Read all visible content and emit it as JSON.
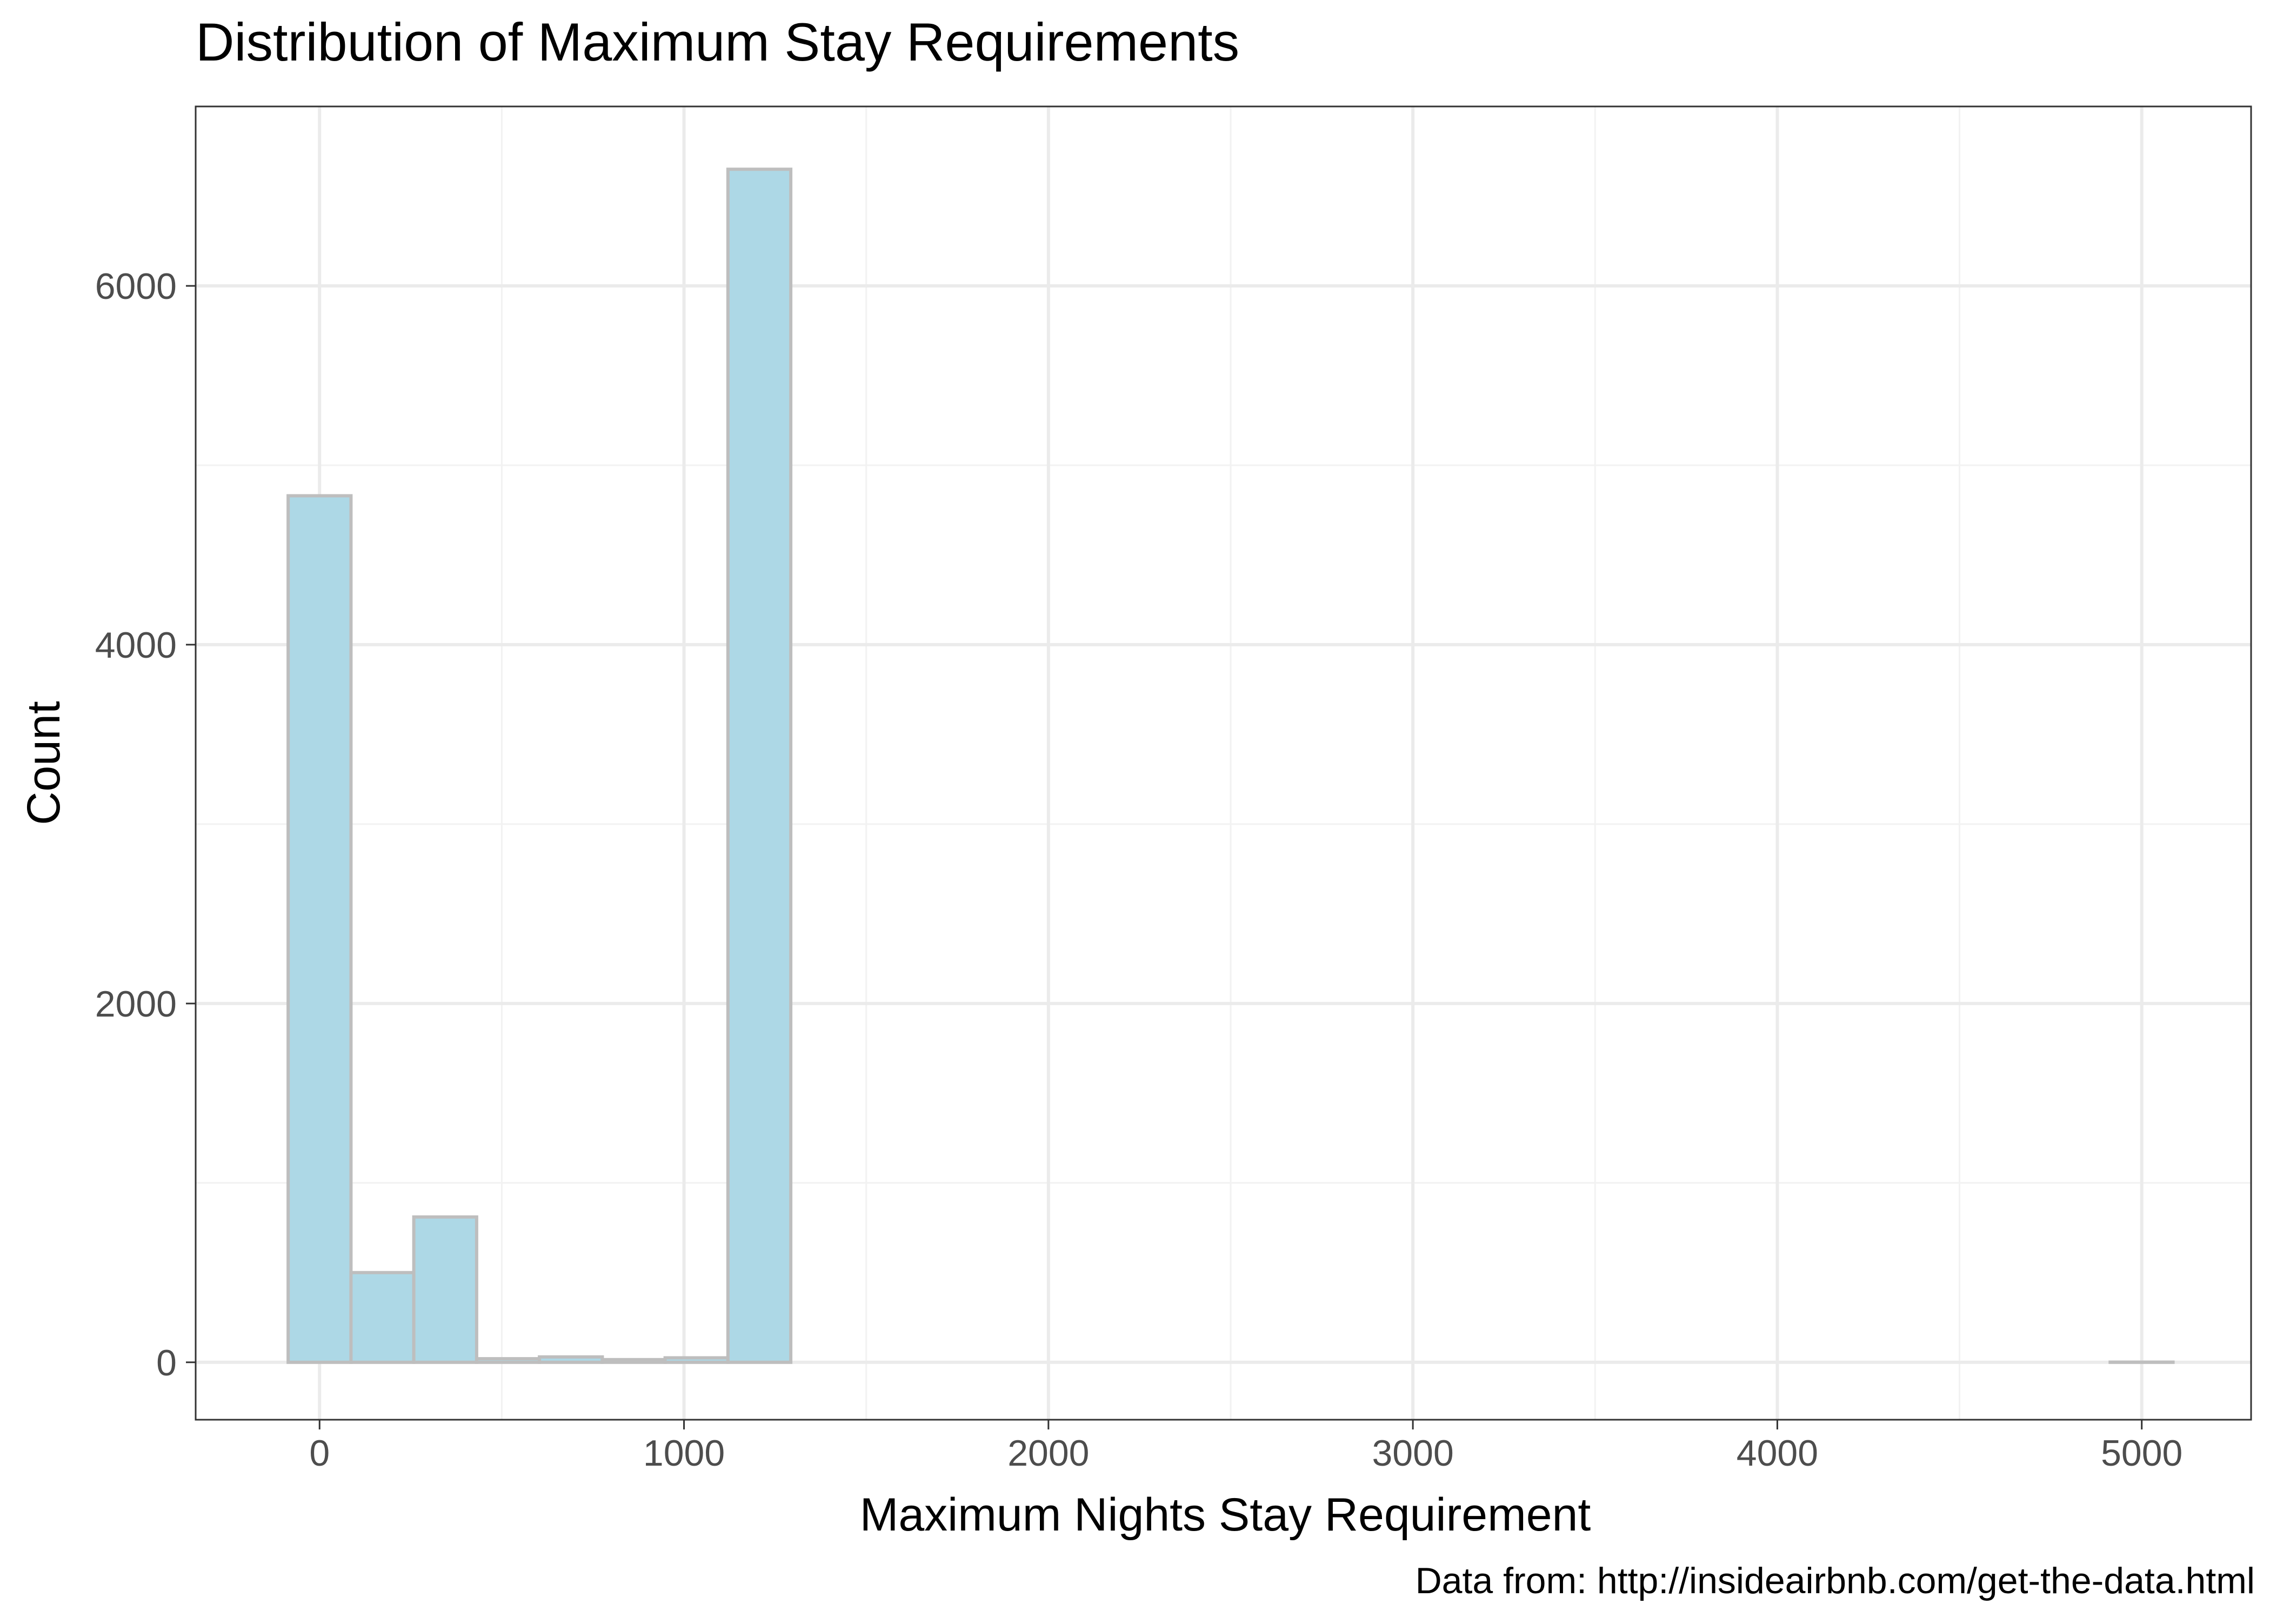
{
  "chart_data": {
    "type": "bar",
    "title": "Distribution of Maximum Stay Requirements",
    "xlabel": "Maximum Nights Stay Requirement",
    "ylabel": "Count",
    "caption": "Data from: http://insideairbnb.com/get-the-data.html",
    "xlim": [
      -340,
      5300
    ],
    "ylim": [
      -320,
      7000
    ],
    "x_ticks": [
      0,
      1000,
      2000,
      3000,
      4000,
      5000
    ],
    "y_ticks": [
      0,
      2000,
      4000,
      6000
    ],
    "x_tick_labels": [
      "0",
      "1000",
      "2000",
      "3000",
      "4000",
      "5000"
    ],
    "y_tick_labels": [
      "0",
      "2000",
      "4000",
      "6000"
    ],
    "grid": true,
    "bin_width": 172.4,
    "bins": [
      {
        "x0": -86.2,
        "x1": 86.2,
        "count": 4830
      },
      {
        "x0": 86.2,
        "x1": 258.6,
        "count": 500
      },
      {
        "x0": 258.6,
        "x1": 431.0,
        "count": 810
      },
      {
        "x0": 431.0,
        "x1": 603.4,
        "count": 20
      },
      {
        "x0": 603.4,
        "x1": 775.8,
        "count": 30
      },
      {
        "x0": 775.8,
        "x1": 948.2,
        "count": 15
      },
      {
        "x0": 948.2,
        "x1": 1120.6,
        "count": 25
      },
      {
        "x0": 1120.6,
        "x1": 1293.0,
        "count": 6650
      },
      {
        "x0": 1293.0,
        "x1": 1465.4,
        "count": 0
      },
      {
        "x0": 1465.4,
        "x1": 1637.8,
        "count": 0
      },
      {
        "x0": 1637.8,
        "x1": 1810.2,
        "count": 0
      },
      {
        "x0": 1810.2,
        "x1": 1982.6,
        "count": 0
      },
      {
        "x0": 1982.6,
        "x1": 2155.0,
        "count": 0
      },
      {
        "x0": 2155.0,
        "x1": 2327.4,
        "count": 0
      },
      {
        "x0": 2327.4,
        "x1": 2499.8,
        "count": 0
      },
      {
        "x0": 2499.8,
        "x1": 2672.2,
        "count": 0
      },
      {
        "x0": 2672.2,
        "x1": 2844.6,
        "count": 0
      },
      {
        "x0": 2844.6,
        "x1": 3017.0,
        "count": 0
      },
      {
        "x0": 3017.0,
        "x1": 3189.4,
        "count": 0
      },
      {
        "x0": 3189.4,
        "x1": 3361.8,
        "count": 0
      },
      {
        "x0": 3361.8,
        "x1": 3534.2,
        "count": 0
      },
      {
        "x0": 3534.2,
        "x1": 3706.6,
        "count": 0
      },
      {
        "x0": 3706.6,
        "x1": 3879.0,
        "count": 0
      },
      {
        "x0": 3879.0,
        "x1": 4051.4,
        "count": 0
      },
      {
        "x0": 4051.4,
        "x1": 4223.8,
        "count": 0
      },
      {
        "x0": 4223.8,
        "x1": 4396.2,
        "count": 0
      },
      {
        "x0": 4396.2,
        "x1": 4568.6,
        "count": 0
      },
      {
        "x0": 4568.6,
        "x1": 4741.0,
        "count": 0
      },
      {
        "x0": 4741.0,
        "x1": 4913.4,
        "count": 0
      },
      {
        "x0": 4913.4,
        "x1": 5085.8,
        "count": 1
      }
    ],
    "colors": {
      "bar_fill": "#add8e6",
      "bar_stroke": "#bebebe",
      "grid_major": "#ebebeb",
      "grid_minor": "#f2f2f2",
      "panel_border": "#333333",
      "tick_text": "#4d4d4d",
      "text": "#000000"
    }
  }
}
